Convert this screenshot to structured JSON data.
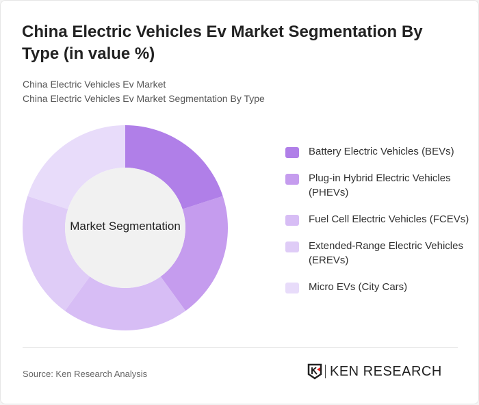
{
  "title": "China Electric Vehicles Ev Market Segmentation By Type (in value %)",
  "subtitle1": "China Electric Vehicles Ev Market",
  "subtitle2": "China Electric Vehicles Ev Market Segmentation By Type",
  "source": "Source: Ken Research Analysis",
  "logo": "KEN RESEARCH",
  "chart_data": {
    "type": "pie",
    "donut": true,
    "center_label": "Market Segmentation",
    "legend_position": "right",
    "categories": [
      "Battery Electric Vehicles (BEVs)",
      "Plug-in Hybrid Electric Vehicles (PHEVs)",
      "Fuel Cell Electric Vehicles (FCEVs)",
      "Extended-Range Electric Vehicles (EREVs)",
      "Micro EVs (City Cars)"
    ],
    "values": [
      20,
      20,
      20,
      20,
      20
    ],
    "colors": [
      "#b07fe8",
      "#c59cee",
      "#d7bdf5",
      "#dfccf7",
      "#e8dcfa"
    ]
  }
}
